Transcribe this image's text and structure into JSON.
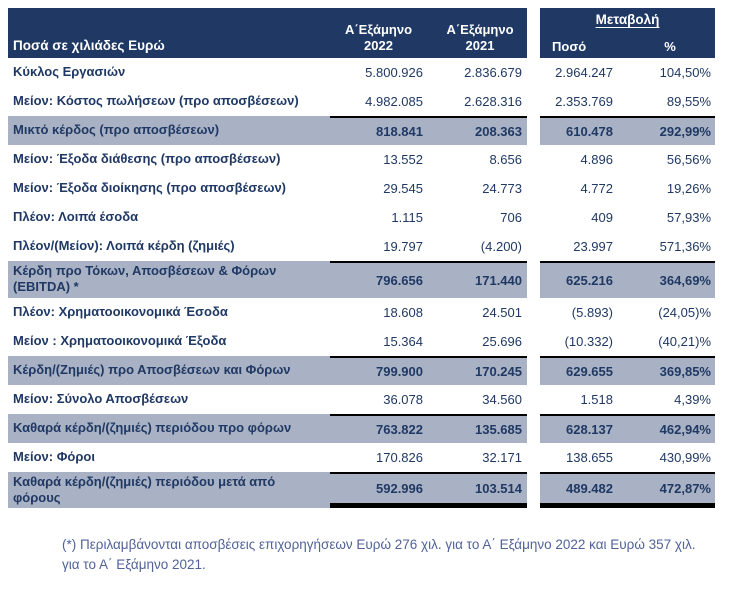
{
  "header": {
    "amounts_label": "Ποσά σε χιλιάδες Ευρώ",
    "period_2022": {
      "line1": "Α΄Εξάμηνο",
      "line2": "2022"
    },
    "period_2021": {
      "line1": "Α΄Εξάμηνο",
      "line2": "2021"
    },
    "change": {
      "title": "Μεταβολή",
      "amount_label": "Ποσό",
      "percent_label": "%"
    }
  },
  "rows": [
    {
      "label": "Κύκλος Εργασιών",
      "v2022": "5.800.926",
      "v2021": "2.836.679",
      "amount": "2.964.247",
      "pct": "104,50%",
      "style": "normal"
    },
    {
      "label": "Μείον: Κόστος πωλήσεων (προ αποσβέσεων)",
      "v2022": "4.982.085",
      "v2021": "2.628.316",
      "amount": "2.353.769",
      "pct": "89,55%",
      "style": "normal"
    },
    {
      "label": "Μικτό κέρδος (προ αποσβέσεων)",
      "v2022": "818.841",
      "v2021": "208.363",
      "amount": "610.478",
      "pct": "292,99%",
      "style": "subtotal"
    },
    {
      "label": "Μείον: Έξοδα διάθεσης (προ αποσβέσεων)",
      "v2022": "13.552",
      "v2021": "8.656",
      "amount": "4.896",
      "pct": "56,56%",
      "style": "normal"
    },
    {
      "label": "Μείον: Έξοδα διοίκησης (προ αποσβέσεων)",
      "v2022": "29.545",
      "v2021": "24.773",
      "amount": "4.772",
      "pct": "19,26%",
      "style": "normal"
    },
    {
      "label": "Πλέον: Λοιπά έσοδα",
      "v2022": "1.115",
      "v2021": "706",
      "amount": "409",
      "pct": "57,93%",
      "style": "normal"
    },
    {
      "label": "Πλέον/(Μείον): Λοιπά κέρδη (ζημιές)",
      "v2022": "19.797",
      "v2021": "(4.200)",
      "amount": "23.997",
      "pct": "571,36%",
      "style": "normal"
    },
    {
      "label": "Κέρδη προ Τόκων, Αποσβέσεων & Φόρων (EBITDA) *",
      "v2022": "796.656",
      "v2021": "171.440",
      "amount": "625.216",
      "pct": "364,69%",
      "style": "subtotal"
    },
    {
      "label": "Πλέον:  Χρηματοοικονομικά Έσοδα",
      "v2022": "18.608",
      "v2021": "24.501",
      "amount": "(5.893)",
      "pct": "(24,05)%",
      "style": "normal"
    },
    {
      "label": "Μείον : Χρηματοοικονομικά Έξοδα",
      "v2022": "15.364",
      "v2021": "25.696",
      "amount": "(10.332)",
      "pct": "(40,21)%",
      "style": "normal"
    },
    {
      "label": "Κέρδη/(Ζημιές) προ Αποσβέσεων και Φόρων",
      "v2022": "799.900",
      "v2021": "170.245",
      "amount": "629.655",
      "pct": "369,85%",
      "style": "subtotal"
    },
    {
      "label": "Μείον: Σύνολο Αποσβέσεων",
      "v2022": "36.078",
      "v2021": "34.560",
      "amount": "1.518",
      "pct": "4,39%",
      "style": "normal"
    },
    {
      "label": "Καθαρά κέρδη/(ζημιές) περιόδου προ φόρων",
      "v2022": "763.822",
      "v2021": "135.685",
      "amount": "628.137",
      "pct": "462,94%",
      "style": "subtotal"
    },
    {
      "label": "Μείον: Φόροι",
      "v2022": "170.826",
      "v2021": "32.171",
      "amount": "138.655",
      "pct": "430,99%",
      "style": "normal"
    },
    {
      "label": "Καθαρά κέρδη/(ζημιές) περιόδου μετά από φόρους",
      "v2022": "592.996",
      "v2021": "103.514",
      "amount": "489.482",
      "pct": "472,87%",
      "style": "total"
    }
  ],
  "footnote": "(*) Περιλαμβάνονται αποσβέσεις επιχορηγήσεων Ευρώ 276 χιλ. για το Α΄ Εξάμηνο  2022 και Ευρώ 357 χιλ. για το Α΄ Εξάμηνο 2021.",
  "colors": {
    "header_bg": "#1F3864",
    "highlight_bg": "#A9B2C4",
    "text": "#1F3864",
    "footnote_text": "#51629A",
    "border": "#000000"
  }
}
